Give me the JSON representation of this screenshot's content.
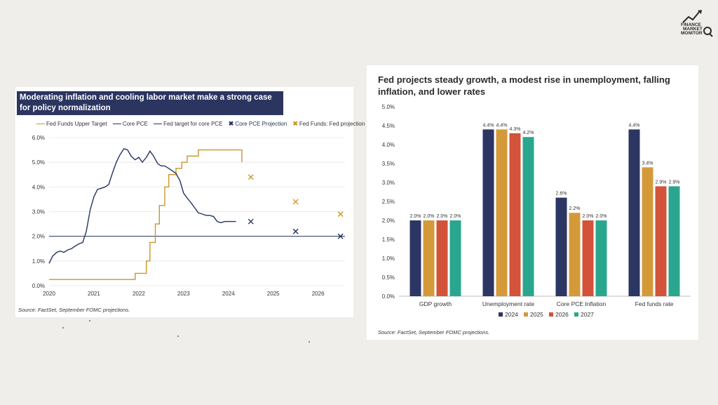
{
  "logo": {
    "line1": "FINANCE",
    "line2": "MARKET",
    "line3": "MONITOR",
    "icon": "chart-arrow-magnifier-icon"
  },
  "left_chart": {
    "title": "Moderating inflation and cooling labor market make a strong case for policy normalization",
    "source": "Source: FactSet, September FOMC projections.",
    "colors": {
      "gold": "#c9962a",
      "navy": "#24345f"
    }
  },
  "right_chart": {
    "title": "Fed projects steady growth, a modest rise in unemployment, falling inflation, and lower rates",
    "source": "Source: FactSet, September FOMC projections.",
    "colors": [
      "#2c3663",
      "#d49a3a",
      "#d2533a",
      "#2aa68f"
    ]
  },
  "chart_data": [
    {
      "type": "line",
      "title": "Moderating inflation and cooling labor market make a strong case for policy normalization",
      "ylim": [
        0,
        6
      ],
      "xlim": [
        2020,
        2026.6
      ],
      "yticks": [
        "0.0%",
        "1.0%",
        "2.0%",
        "3.0%",
        "4.0%",
        "5.0%",
        "6.0%"
      ],
      "xticks": [
        "2020",
        "2021",
        "2022",
        "2023",
        "2024",
        "2025",
        "2026"
      ],
      "legend": [
        "Fed Funds Upper Target",
        "Core PCE",
        "Fed target for core PCE",
        "Core PCE Projection",
        "Fed Funds: Fed projection"
      ],
      "series": [
        {
          "name": "Fed Funds Upper Target",
          "style": "step",
          "x": [
            2020.0,
            2021.75,
            2021.92,
            2022.17,
            2022.25,
            2022.37,
            2022.46,
            2022.58,
            2022.67,
            2022.83,
            2022.96,
            2023.08,
            2023.17,
            2023.33,
            2023.58,
            2024.3,
            2024.3
          ],
          "y": [
            0.25,
            0.25,
            0.5,
            1.0,
            1.75,
            2.5,
            3.25,
            4.0,
            4.5,
            4.75,
            5.0,
            5.25,
            5.25,
            5.5,
            5.5,
            5.5,
            5.0
          ]
        },
        {
          "name": "Core PCE",
          "x": [
            2020.0,
            2020.08,
            2020.17,
            2020.25,
            2020.33,
            2020.42,
            2020.5,
            2020.58,
            2020.67,
            2020.75,
            2020.83,
            2020.92,
            2021.0,
            2021.08,
            2021.17,
            2021.25,
            2021.33,
            2021.42,
            2021.5,
            2021.58,
            2021.67,
            2021.75,
            2021.83,
            2021.92,
            2022.0,
            2022.08,
            2022.17,
            2022.25,
            2022.33,
            2022.42,
            2022.5,
            2022.58,
            2022.67,
            2022.75,
            2022.83,
            2022.92,
            2023.0,
            2023.08,
            2023.17,
            2023.25,
            2023.33,
            2023.42,
            2023.5,
            2023.58,
            2023.67,
            2023.75,
            2023.83,
            2023.92,
            2024.0,
            2024.08,
            2024.17
          ],
          "y": [
            0.9,
            1.2,
            1.35,
            1.4,
            1.35,
            1.45,
            1.5,
            1.6,
            1.7,
            1.75,
            2.2,
            3.1,
            3.6,
            3.9,
            3.95,
            4.0,
            4.1,
            4.6,
            5.0,
            5.3,
            5.55,
            5.5,
            5.25,
            5.1,
            5.2,
            5.0,
            5.2,
            5.45,
            5.25,
            4.95,
            4.85,
            4.85,
            4.75,
            4.65,
            4.55,
            4.25,
            3.75,
            3.55,
            3.35,
            3.15,
            2.95,
            2.9,
            2.85,
            2.85,
            2.8,
            2.6,
            2.55,
            2.6,
            2.6,
            2.6,
            2.6
          ]
        },
        {
          "name": "Fed target for core PCE",
          "x": [
            2020.0,
            2026.6
          ],
          "y": [
            2.0,
            2.0
          ]
        },
        {
          "name": "Core PCE Projection",
          "marker": "x",
          "x": [
            2024.5,
            2025.5,
            2026.5
          ],
          "y": [
            2.6,
            2.2,
            2.0
          ]
        },
        {
          "name": "Fed Funds: Fed projection",
          "marker": "x",
          "x": [
            2024.5,
            2025.5,
            2026.5
          ],
          "y": [
            4.4,
            3.4,
            2.9
          ]
        }
      ]
    },
    {
      "type": "bar",
      "title": "Fed projects steady growth, a modest rise in unemployment, falling inflation, and lower rates",
      "categories": [
        "GDP growth",
        "Unemployment rate",
        "Core PCE Inflation",
        "Fed funds rate"
      ],
      "ylim": [
        0,
        5
      ],
      "yticks": [
        "0.0%",
        "0.5%",
        "1.0%",
        "1.5%",
        "2.0%",
        "2.5%",
        "3.0%",
        "3.5%",
        "4.0%",
        "4.5%",
        "5.0%"
      ],
      "legend_position": "bottom",
      "series": [
        {
          "name": "2024",
          "values": [
            2.0,
            4.4,
            2.6,
            4.4
          ],
          "labels": [
            "2.0%",
            "4.4%",
            "2.6%",
            "4.4%"
          ]
        },
        {
          "name": "2025",
          "values": [
            2.0,
            4.4,
            2.2,
            3.4
          ],
          "labels": [
            "2.0%",
            "4.4%",
            "2.2%",
            "3.4%"
          ]
        },
        {
          "name": "2026",
          "values": [
            2.0,
            4.3,
            2.0,
            2.9
          ],
          "labels": [
            "2.0%",
            "4.3%",
            "2.0%",
            "2.9%"
          ]
        },
        {
          "name": "2027",
          "values": [
            2.0,
            4.2,
            2.0,
            2.9
          ],
          "labels": [
            "2.0%",
            "4.2%",
            "2.0%",
            "2.9%"
          ]
        }
      ]
    }
  ]
}
